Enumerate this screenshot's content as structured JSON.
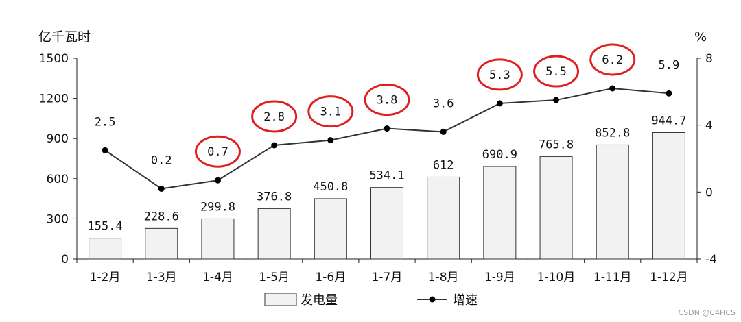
{
  "chart_data": {
    "type": "bar",
    "categories": [
      "1-2月",
      "1-3月",
      "1-4月",
      "1-5月",
      "1-6月",
      "1-7月",
      "1-8月",
      "1-9月",
      "1-10月",
      "1-11月",
      "1-12月"
    ],
    "series": [
      {
        "name": "发电量",
        "type": "bar",
        "axis": "left",
        "values": [
          155.4,
          228.6,
          299.8,
          376.8,
          450.8,
          534.1,
          612,
          690.9,
          765.8,
          852.8,
          944.7
        ],
        "labels": [
          "155.4",
          "228.6",
          "299.8",
          "376.8",
          "450.8",
          "534.1",
          "612",
          "690.9",
          "765.8",
          "852.8",
          "944.7"
        ]
      },
      {
        "name": "增速",
        "type": "line",
        "axis": "right",
        "values": [
          2.5,
          0.2,
          0.7,
          2.8,
          3.1,
          3.8,
          3.6,
          5.3,
          5.5,
          6.2,
          5.9
        ],
        "labels": [
          "2.5",
          "0.2",
          "0.7",
          "2.8",
          "3.1",
          "3.8",
          "3.6",
          "5.3",
          "5.5",
          "6.2",
          "5.9"
        ]
      }
    ],
    "ylabel": "亿千瓦时",
    "y2label": "%",
    "ylim": [
      0,
      1500
    ],
    "y2lim": [
      -4,
      8
    ],
    "yticks": [
      0,
      300,
      600,
      900,
      1200,
      1500
    ],
    "y2ticks": [
      -4,
      0,
      4,
      8
    ],
    "legend_position": "bottom",
    "grid": false,
    "annotations": {
      "circled_growth_points": [
        "1-4月",
        "1-5月",
        "1-6月",
        "1-7月",
        "1-9月",
        "1-10月",
        "1-11月"
      ],
      "circle_color": "#e02020"
    }
  },
  "colors": {
    "bar_fill": "#f2f2f2",
    "bar_stroke": "#333333",
    "line": "#333333",
    "marker": "#000000",
    "circle": "#e02020"
  },
  "watermark": "CSDN @C4HCS"
}
